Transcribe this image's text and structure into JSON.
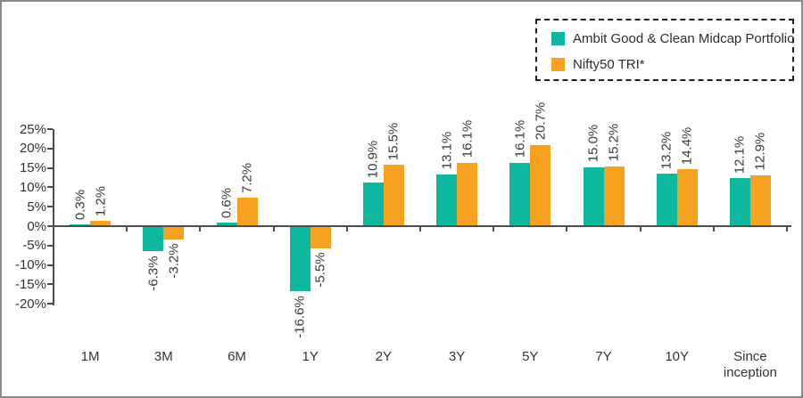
{
  "legend": {
    "items": [
      {
        "label": "Ambit Good & Clean Midcap Portfolio",
        "color": "#0eb89e"
      },
      {
        "label": "Nifty50 TRI*",
        "color": "#f6a11f"
      }
    ]
  },
  "chart_data": {
    "type": "bar",
    "categories": [
      "1M",
      "3M",
      "6M",
      "1Y",
      "2Y",
      "3Y",
      "5Y",
      "7Y",
      "10Y",
      "Since inception"
    ],
    "series": [
      {
        "name": "Ambit Good & Clean Midcap Portfolio",
        "color": "#0eb89e",
        "values": [
          0.3,
          -6.3,
          0.6,
          -16.6,
          10.9,
          13.1,
          16.1,
          15.0,
          13.2,
          12.1
        ],
        "labels": [
          "0.3%",
          "-6.3%",
          "0.6%",
          "-16.6%",
          "10.9%",
          "13.1%",
          "16.1%",
          "15.0%",
          "13.2%",
          "12.1%"
        ]
      },
      {
        "name": "Nifty50 TRI*",
        "color": "#f6a11f",
        "values": [
          1.2,
          -3.2,
          7.2,
          -5.5,
          15.5,
          16.1,
          20.7,
          15.2,
          14.4,
          12.9
        ],
        "labels": [
          "1.2%",
          "-3.2%",
          "7.2%",
          "-5.5%",
          "15.5%",
          "16.1%",
          "20.7%",
          "15.2%",
          "14.4%",
          "12.9%"
        ]
      }
    ],
    "y_axis": {
      "tick_labels": [
        "25%",
        "20%",
        "15%",
        "10%",
        "5%",
        "0%",
        "-5%",
        "-10%",
        "-15%",
        "-20%"
      ],
      "max": 25,
      "min": -20,
      "step": 5
    },
    "value_label_rotation_deg": -90,
    "legend_position": "top-right",
    "grid": false,
    "title": "",
    "xlabel": "",
    "ylabel": ""
  }
}
